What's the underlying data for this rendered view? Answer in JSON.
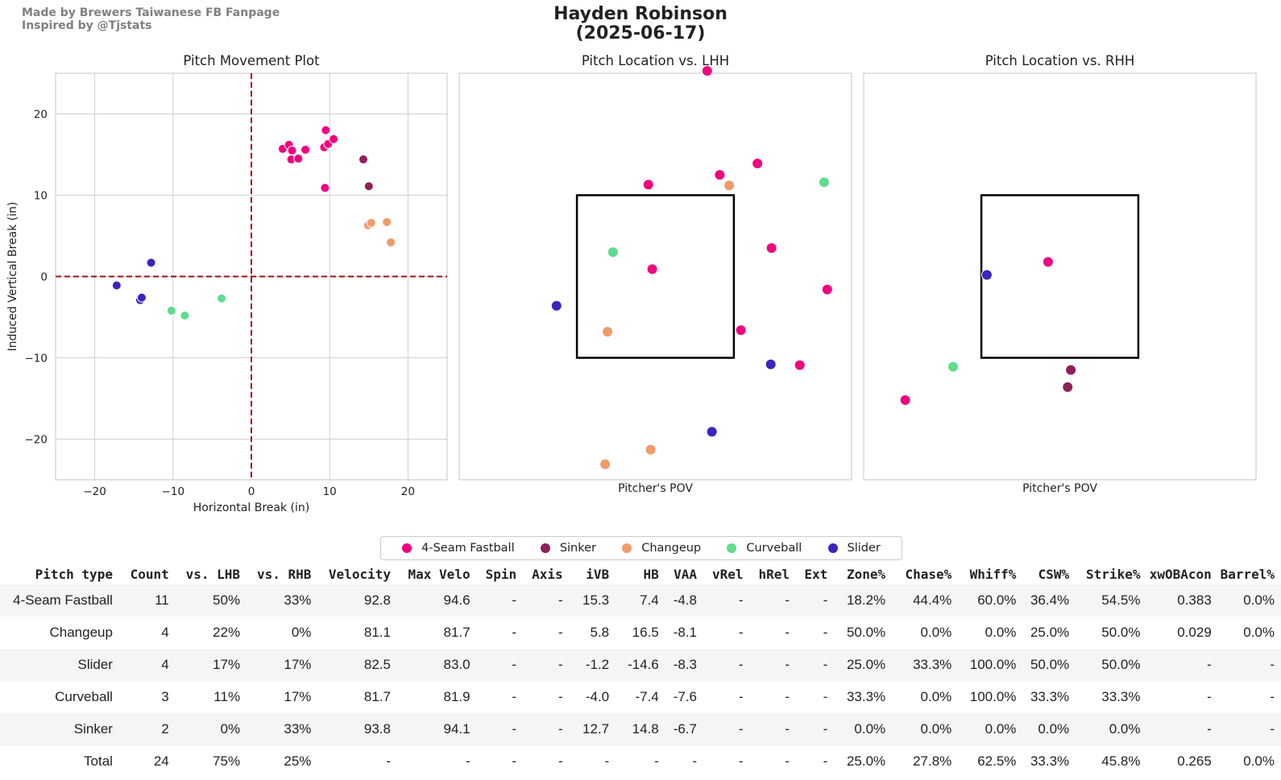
{
  "header": {
    "credit_line1": "Made by Brewers Taiwanese FB Fanpage",
    "credit_line2": "Inspired by @Tjstats",
    "title_line1": "Hayden Robinson",
    "title_line2": "(2025-06-17)"
  },
  "chart_data": [
    {
      "type": "scatter",
      "title": "Pitch Movement Plot",
      "xlabel": "Horizontal Break (in)",
      "ylabel": "Induced Vertical Break (in)",
      "xlim": [
        -25,
        25
      ],
      "ylim": [
        -25,
        25
      ],
      "xticks": [
        -20,
        -10,
        0,
        10,
        20
      ],
      "yticks": [
        -20,
        -10,
        0,
        10,
        20
      ],
      "xtick_labels": [
        "−20",
        "−10",
        "0",
        "10",
        "20"
      ],
      "ytick_labels": [
        "−20",
        "−10",
        "0",
        "10",
        "20"
      ],
      "grid": true,
      "reference_lines": {
        "x": 0,
        "y": 0,
        "color": "#a31010",
        "style": "dashed"
      },
      "series": [
        {
          "name": "4-Seam Fastball",
          "points": [
            [
              4,
              15.7
            ],
            [
              4.8,
              16.2
            ],
            [
              5.2,
              15.5
            ],
            [
              5.1,
              14.4
            ],
            [
              6,
              14.5
            ],
            [
              6.9,
              15.6
            ],
            [
              9.3,
              15.9
            ],
            [
              9.5,
              18
            ],
            [
              9.8,
              16.3
            ],
            [
              10.5,
              16.9
            ],
            [
              9.4,
              10.9
            ]
          ]
        },
        {
          "name": "Sinker",
          "points": [
            [
              14.3,
              14.4
            ],
            [
              15,
              11.1
            ]
          ]
        },
        {
          "name": "Changeup",
          "points": [
            [
              14.9,
              6.3
            ],
            [
              15.3,
              6.6
            ],
            [
              17.3,
              6.7
            ],
            [
              17.8,
              4.2
            ]
          ]
        },
        {
          "name": "Curveball",
          "points": [
            [
              -10.2,
              -4.2
            ],
            [
              -8.5,
              -4.8
            ],
            [
              -3.8,
              -2.7
            ]
          ]
        },
        {
          "name": "Slider",
          "points": [
            [
              -17.2,
              -1.1
            ],
            [
              -14.2,
              -2.9
            ],
            [
              -14,
              -2.6
            ],
            [
              -12.8,
              1.7
            ]
          ]
        }
      ]
    },
    {
      "type": "scatter",
      "title": "Pitch Location vs. LHH",
      "xlabel": "Pitcher's POV",
      "ylabel": "",
      "xlim": [
        -25,
        25
      ],
      "ylim": [
        -25,
        25
      ],
      "strike_zone": {
        "x": [
          -10,
          10
        ],
        "y": [
          -10,
          10
        ]
      },
      "grid": false,
      "series": [
        {
          "name": "4-Seam Fastball",
          "points": [
            [
              6.6,
              25.3
            ],
            [
              -0.9,
              11.3
            ],
            [
              8.2,
              12.5
            ],
            [
              13,
              13.9
            ],
            [
              14.8,
              3.5
            ],
            [
              -0.4,
              0.9
            ],
            [
              21.9,
              -1.6
            ],
            [
              10.9,
              -6.6
            ],
            [
              18.4,
              -10.9
            ]
          ]
        },
        {
          "name": "Sinker",
          "points": []
        },
        {
          "name": "Changeup",
          "points": [
            [
              9.4,
              11.2
            ],
            [
              -6.1,
              -6.8
            ],
            [
              -0.6,
              -21.3
            ],
            [
              -6.4,
              -23.1
            ]
          ]
        },
        {
          "name": "Curveball",
          "points": [
            [
              21.5,
              11.6
            ],
            [
              -5.4,
              3
            ]
          ]
        },
        {
          "name": "Slider",
          "points": [
            [
              -12.6,
              -3.6
            ],
            [
              14.7,
              -10.8
            ],
            [
              7.2,
              -19.1
            ]
          ]
        }
      ]
    },
    {
      "type": "scatter",
      "title": "Pitch Location vs. RHH",
      "xlabel": "Pitcher's POV",
      "ylabel": "",
      "xlim": [
        -25,
        25
      ],
      "ylim": [
        -25,
        25
      ],
      "strike_zone": {
        "x": [
          -10,
          10
        ],
        "y": [
          -10,
          10
        ]
      },
      "grid": false,
      "series": [
        {
          "name": "4-Seam Fastball",
          "points": [
            [
              -1.5,
              1.8
            ],
            [
              -19.7,
              -15.2
            ]
          ]
        },
        {
          "name": "Sinker",
          "points": [
            [
              1.4,
              -11.5
            ],
            [
              1,
              -13.6
            ]
          ]
        },
        {
          "name": "Changeup",
          "points": []
        },
        {
          "name": "Curveball",
          "points": [
            [
              -13.6,
              -11.1
            ]
          ]
        },
        {
          "name": "Slider",
          "points": [
            [
              -9.3,
              0.2
            ]
          ]
        }
      ]
    }
  ],
  "pitch_types": [
    {
      "name": "4-Seam Fastball",
      "color": "#f0047f"
    },
    {
      "name": "Sinker",
      "color": "#8f1f5c"
    },
    {
      "name": "Changeup",
      "color": "#f09b6a"
    },
    {
      "name": "Curveball",
      "color": "#5fdc8e"
    },
    {
      "name": "Slider",
      "color": "#3c24be"
    }
  ],
  "table": {
    "headers": [
      "Pitch type",
      "Count",
      "vs. LHB",
      "vs. RHB",
      "Velocity",
      "Max Velo",
      "Spin",
      "Axis",
      "iVB",
      "HB",
      "VAA",
      "vRel",
      "hRel",
      "Ext",
      "Zone%",
      "Chase%",
      "Whiff%",
      "CSW%",
      "Strike%",
      "xwOBAcon",
      "Barrel%"
    ],
    "rows": [
      [
        "4-Seam Fastball",
        "11",
        "50%",
        "33%",
        "92.8",
        "94.6",
        "-",
        "-",
        "15.3",
        "7.4",
        "-4.8",
        "-",
        "-",
        "-",
        "18.2%",
        "44.4%",
        "60.0%",
        "36.4%",
        "54.5%",
        "0.383",
        "0.0%"
      ],
      [
        "Changeup",
        "4",
        "22%",
        "0%",
        "81.1",
        "81.7",
        "-",
        "-",
        "5.8",
        "16.5",
        "-8.1",
        "-",
        "-",
        "-",
        "50.0%",
        "0.0%",
        "0.0%",
        "25.0%",
        "50.0%",
        "0.029",
        "0.0%"
      ],
      [
        "Slider",
        "4",
        "17%",
        "17%",
        "82.5",
        "83.0",
        "-",
        "-",
        "-1.2",
        "-14.6",
        "-8.3",
        "-",
        "-",
        "-",
        "25.0%",
        "33.3%",
        "100.0%",
        "50.0%",
        "50.0%",
        "-",
        "-"
      ],
      [
        "Curveball",
        "3",
        "11%",
        "17%",
        "81.7",
        "81.9",
        "-",
        "-",
        "-4.0",
        "-7.4",
        "-7.6",
        "-",
        "-",
        "-",
        "33.3%",
        "0.0%",
        "100.0%",
        "33.3%",
        "33.3%",
        "-",
        "-"
      ],
      [
        "Sinker",
        "2",
        "0%",
        "33%",
        "93.8",
        "94.1",
        "-",
        "-",
        "12.7",
        "14.8",
        "-6.7",
        "-",
        "-",
        "-",
        "0.0%",
        "0.0%",
        "0.0%",
        "0.0%",
        "0.0%",
        "-",
        "-"
      ],
      [
        "Total",
        "24",
        "75%",
        "25%",
        "-",
        "-",
        "-",
        "-",
        "-",
        "-",
        "-",
        "-",
        "-",
        "-",
        "25.0%",
        "27.8%",
        "62.5%",
        "33.3%",
        "45.8%",
        "0.265",
        "0.0%"
      ]
    ]
  }
}
